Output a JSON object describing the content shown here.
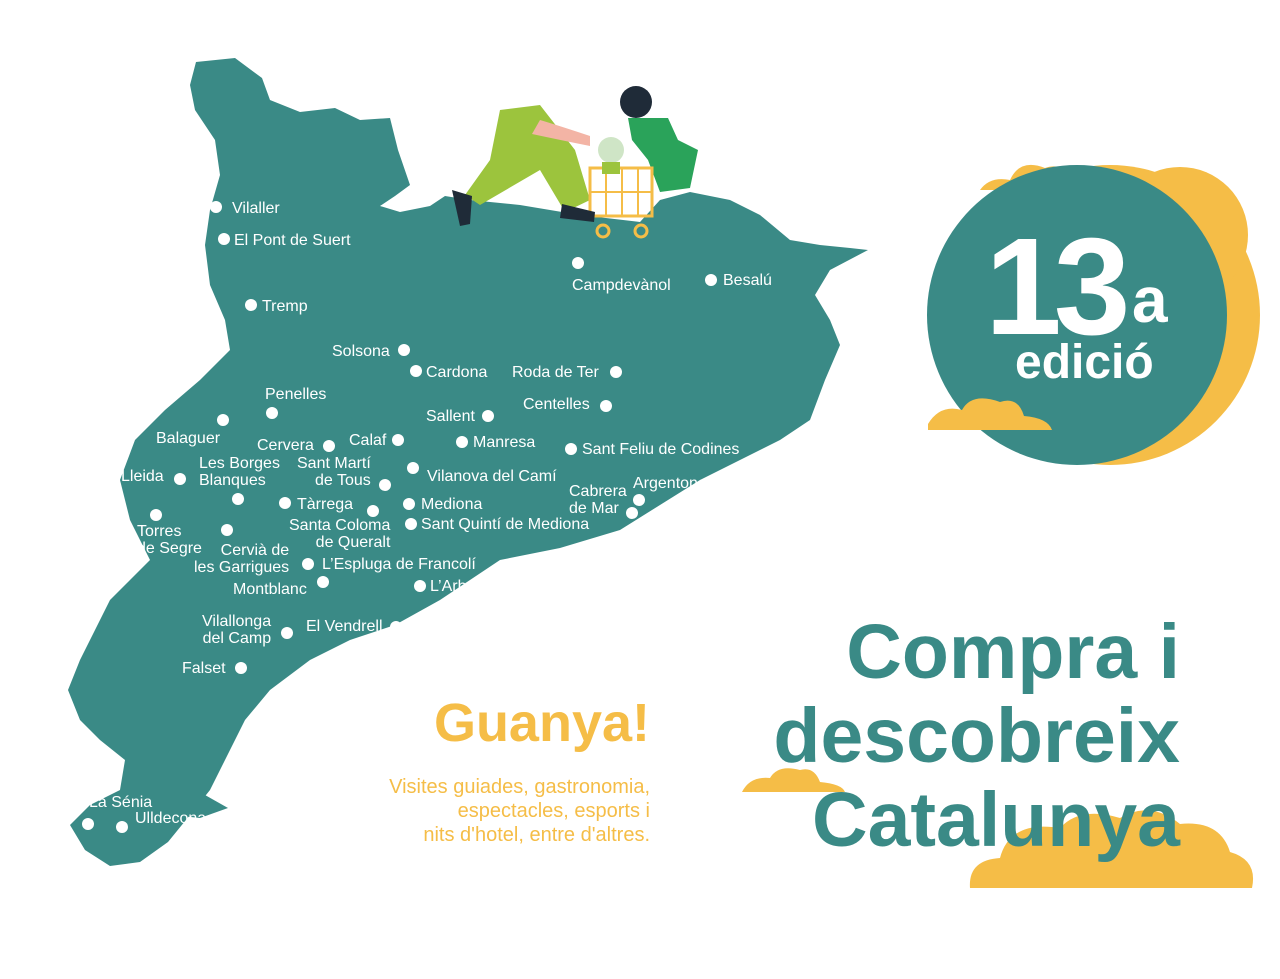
{
  "colors": {
    "teal": "#3a8a86",
    "yellow": "#f5bd47",
    "white": "#ffffff"
  },
  "badge": {
    "number": "13",
    "superscript": "a",
    "word": "edició"
  },
  "headline": {
    "line1": "Compra i",
    "line2": "descobreix",
    "line3": "Catalunya"
  },
  "prize": {
    "title": "Guanya!",
    "line1": "Visites guiades, gastronomia,",
    "line2": "espectacles, esports i",
    "line3": "nits d'hotel, entre d'altres."
  },
  "illustration": {
    "subject": "two people pushing a shopping cart with a plant",
    "icon": "shopping-cart-icon"
  },
  "towns": {
    "vilaller": "Vilaller",
    "pont_suert": "El Pont de Suert",
    "tremp": "Tremp",
    "campdevanol": "Campdevànol",
    "besalu": "Besalú",
    "solsona": "Solsona",
    "cardona": "Cardona",
    "roda_ter": "Roda de Ter",
    "penelles": "Penelles",
    "sallent": "Sallent",
    "centelles": "Centelles",
    "balaguer": "Balaguer",
    "cervera": "Cervera",
    "calaf": "Calaf",
    "manresa": "Manresa",
    "sant_feliu": "Sant Feliu de Codines",
    "lleida": "Lleida",
    "borges_1": "Les Borges",
    "borges_2": "Blanques",
    "sant_marti_1": "Sant Martí",
    "sant_marti_2": "de Tous",
    "vilanova": "Vilanova del Camí",
    "cabrera_1": "Cabrera",
    "cabrera_2": "de Mar",
    "argentona": "Argentona",
    "tarrega": "Tàrrega",
    "mediona": "Mediona",
    "torres_1": "Torres",
    "torres_2": "de Segre",
    "santa_coloma_1": "Santa Coloma",
    "santa_coloma_2": "de Queralt",
    "sant_quinti": "Sant Quintí de Mediona",
    "cervia_1": "Cervià de",
    "cervia_2": "les Garrigues",
    "espluga": "L’Espluga de Francolí",
    "montblanc": "Montblanc",
    "arboc": "L’Arboç",
    "vilallonga_1": "Vilallonga",
    "vilallonga_2": "del Camp",
    "vendrell": "El Vendrell",
    "falset": "Falset",
    "la_senia": "La Sénia",
    "ulldecona": "Ulldecona"
  }
}
